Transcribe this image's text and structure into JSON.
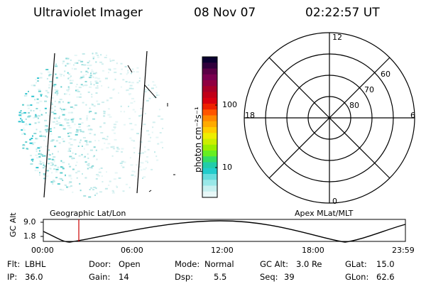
{
  "header": {
    "title": "Ultraviolet Imager",
    "date": "08 Nov 07",
    "time": "02:22:57 UT"
  },
  "colorbar": {
    "unit_label": "photon cm⁻²s⁻¹",
    "ticks": [
      "100",
      "10"
    ],
    "colors": [
      "#0a0030",
      "#30003c",
      "#5a0046",
      "#7a0050",
      "#900040",
      "#a80028",
      "#c00018",
      "#d80010",
      "#ee2200",
      "#ff5500",
      "#ff8800",
      "#ffaa00",
      "#ffcc00",
      "#eeee00",
      "#ccee00",
      "#99ee00",
      "#66ee22",
      "#33dd66",
      "#22ccaa",
      "#22cccc",
      "#66dddd",
      "#99e8e8",
      "#c8f0f0",
      "#e8f8f8"
    ]
  },
  "polar": {
    "hour_labels": {
      "top": "12",
      "bottom": "0",
      "left": "18",
      "right": "6"
    },
    "lat_labels": [
      "60",
      "70",
      "80"
    ]
  },
  "map_labels": {
    "left": "Geographic Lat/Lon",
    "right": "Apex MLat/MLT"
  },
  "altitude_plot": {
    "axis_title": "GC Alt",
    "y_ticks": [
      "9.0",
      "1.8"
    ],
    "x_ticks": [
      "00:00",
      "06:00",
      "12:00",
      "18:00",
      "23:59"
    ],
    "cursor_time": "02:22:57"
  },
  "info": {
    "row1": [
      {
        "key": "Flt:",
        "value": "LBHL"
      },
      {
        "key": "Door:",
        "value": "Open"
      },
      {
        "key": "Mode:",
        "value": "Normal"
      },
      {
        "key": "GC Alt:",
        "value": "3.0 Re"
      },
      {
        "key": "GLat:",
        "value": "15.0"
      }
    ],
    "row2": [
      {
        "key": "IP:",
        "value": "36.0"
      },
      {
        "key": "Gain:",
        "value": "14"
      },
      {
        "key": "Dsp:",
        "value": "5.5"
      },
      {
        "key": "Seq:",
        "value": "39"
      },
      {
        "key": "GLon:",
        "value": "62.6"
      }
    ]
  }
}
